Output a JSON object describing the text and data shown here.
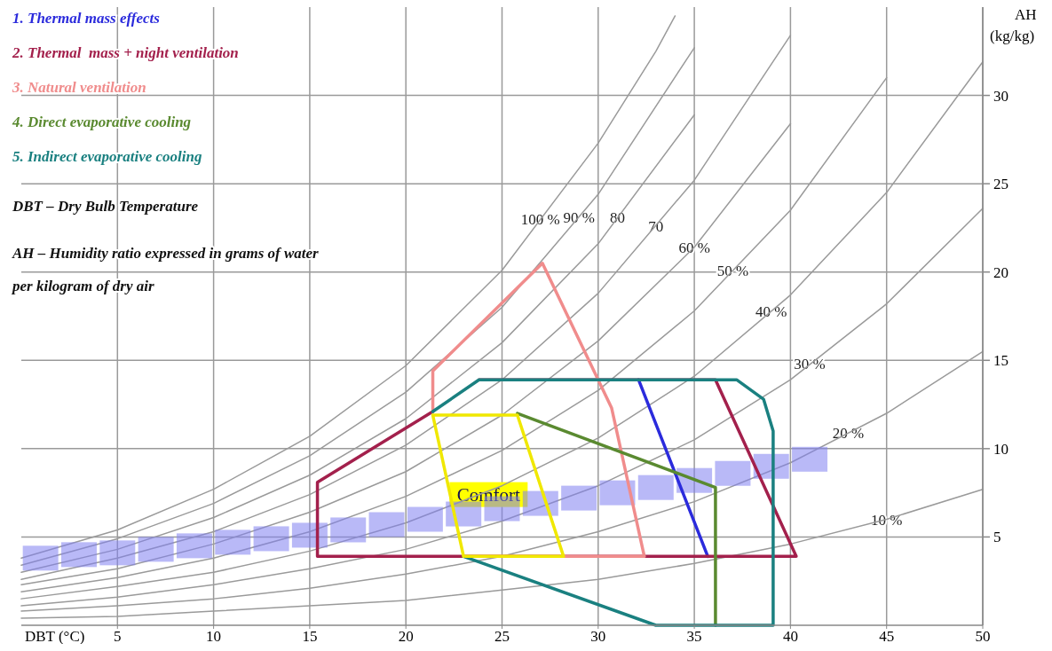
{
  "chart_data": {
    "type": "line",
    "xlabel": "DBT (°C)",
    "ylabel": "AH (kg/kg)",
    "xlim": [
      0,
      50
    ],
    "ylim": [
      0,
      35
    ],
    "xticks": [
      5,
      10,
      15,
      20,
      25,
      30,
      35,
      40,
      45,
      50
    ],
    "yticks": [
      5,
      10,
      15,
      20,
      25,
      30
    ],
    "grid": true,
    "legend": "top left",
    "series": [
      {
        "color": "#9a9a9a",
        "x": [
          0,
          5,
          10,
          15,
          20,
          25,
          30,
          33,
          34
        ],
        "values": [
          3.8,
          5.4,
          7.7,
          10.7,
          14.7,
          20.1,
          27.3,
          32.5,
          34.5
        ]
      },
      {
        "color": "#9a9a9a",
        "x": [
          0,
          5,
          10,
          15,
          20,
          25,
          30,
          35
        ],
        "values": [
          3.4,
          4.9,
          6.9,
          9.6,
          13.2,
          18.0,
          24.4,
          32.7
        ]
      },
      {
        "color": "#9a9a9a",
        "x": [
          0,
          5,
          10,
          15,
          20,
          25,
          30,
          35
        ],
        "values": [
          3.0,
          4.3,
          6.1,
          8.5,
          11.7,
          16.0,
          21.6,
          28.9
        ]
      },
      {
        "color": "#9a9a9a",
        "x": [
          0,
          5,
          10,
          15,
          20,
          25,
          30,
          35,
          40
        ],
        "values": [
          2.6,
          3.8,
          5.3,
          7.4,
          10.2,
          13.9,
          18.8,
          25.2,
          33.4
        ]
      },
      {
        "color": "#9a9a9a",
        "x": [
          0,
          5,
          10,
          15,
          20,
          25,
          30,
          35,
          40
        ],
        "values": [
          2.3,
          3.2,
          4.6,
          6.4,
          8.7,
          11.9,
          16.1,
          21.4,
          28.4
        ]
      },
      {
        "color": "#9a9a9a",
        "x": [
          0,
          5,
          10,
          15,
          20,
          25,
          30,
          35,
          40,
          45
        ],
        "values": [
          1.9,
          2.7,
          3.8,
          5.3,
          7.3,
          9.9,
          13.3,
          17.8,
          23.5,
          31.0
        ]
      },
      {
        "color": "#9a9a9a",
        "x": [
          0,
          5,
          10,
          15,
          20,
          25,
          30,
          35,
          40,
          45,
          50
        ],
        "values": [
          1.5,
          2.2,
          3.0,
          4.2,
          5.8,
          7.9,
          10.6,
          14.1,
          18.7,
          24.5,
          31.9
        ]
      },
      {
        "color": "#9a9a9a",
        "x": [
          0,
          5,
          10,
          15,
          20,
          25,
          30,
          35,
          40,
          45,
          50
        ],
        "values": [
          1.1,
          1.6,
          2.3,
          3.2,
          4.3,
          5.9,
          7.9,
          10.5,
          13.9,
          18.2,
          23.6
        ]
      },
      {
        "color": "#9a9a9a",
        "x": [
          0,
          5,
          10,
          15,
          20,
          25,
          30,
          35,
          40,
          45,
          50
        ],
        "values": [
          0.8,
          1.1,
          1.5,
          2.1,
          2.9,
          3.9,
          5.3,
          7.0,
          9.2,
          12.0,
          15.5
        ]
      },
      {
        "color": "#9a9a9a",
        "x": [
          0,
          5,
          10,
          15,
          20,
          25,
          30,
          35,
          40,
          45,
          50
        ],
        "values": [
          0.4,
          0.5,
          0.8,
          1.1,
          1.4,
          2.0,
          2.6,
          3.5,
          4.6,
          6.0,
          7.7
        ]
      },
      {
        "type": "scatter",
        "marker": "square",
        "color": "#8080f0",
        "x": [
          1,
          3,
          5,
          7,
          9,
          11,
          13,
          15,
          17,
          19,
          21,
          23,
          25,
          27,
          29,
          31,
          33,
          35,
          37,
          39,
          41
        ],
        "values": [
          3.8,
          4.0,
          4.1,
          4.3,
          4.5,
          4.7,
          4.9,
          5.1,
          5.4,
          5.7,
          6.0,
          6.3,
          6.6,
          6.9,
          7.2,
          7.5,
          7.8,
          8.2,
          8.6,
          9.0,
          9.4
        ]
      },
      {
        "name": "1. Thermal mass effects",
        "color": "#2b2bdc",
        "x": [
          32.1,
          35.7
        ],
        "values": [
          13.9,
          3.9
        ]
      },
      {
        "name": "2. Thermal  mass + night ventilation",
        "color": "#a3204c",
        "x": [
          21.4,
          15.4,
          15.4,
          40.3,
          36.1,
          23.8
        ],
        "values": [
          12.1,
          8.1,
          3.9,
          3.9,
          13.9,
          13.9
        ]
      },
      {
        "name": "3. Natural ventilation",
        "color": "#f08c8c",
        "x": [
          21.4,
          21.4,
          27.1,
          30.7,
          32.4,
          23.0
        ],
        "values": [
          12.1,
          14.4,
          20.5,
          12.3,
          3.9,
          3.9
        ]
      },
      {
        "name": "4. Direct evaporative cooling",
        "color": "#5a8a30",
        "x": [
          25.8,
          36.1,
          36.1
        ],
        "values": [
          12.0,
          7.8,
          0
        ]
      },
      {
        "name": "5. Indirect evaporative cooling",
        "color": "#1a8080",
        "x": [
          21.4,
          23.8,
          37.2,
          38.6,
          39.1,
          39.1,
          33.0,
          23.0
        ],
        "values": [
          12.1,
          13.9,
          13.9,
          12.8,
          11.0,
          0,
          0,
          3.9
        ]
      },
      {
        "color": "#f0e800",
        "x": [
          23.0,
          21.4,
          25.8,
          28.2,
          23.1
        ],
        "values": [
          3.9,
          11.9,
          11.9,
          3.9,
          3.9
        ]
      }
    ],
    "annotations": [
      "DBT – Dry Bulb Temperature",
      "AH – Humidity ratio expressed in grams of water per kilogram of dry air",
      {
        "text": "Comfort",
        "x": 24.3,
        "y": 7.4
      },
      {
        "text": "100 %",
        "x": 27,
        "y": 23.0
      },
      {
        "text": "90 %",
        "x": 29,
        "y": 23.1
      },
      {
        "text": "80",
        "x": 31,
        "y": 23.1
      },
      {
        "text": "70",
        "x": 33,
        "y": 22.6
      },
      {
        "text": "60 %",
        "x": 35,
        "y": 21.4
      },
      {
        "text": "50 %",
        "x": 37,
        "y": 20.1
      },
      {
        "text": "40 %",
        "x": 39,
        "y": 17.8
      },
      {
        "text": "30 %",
        "x": 41,
        "y": 14.8
      },
      {
        "text": "20 %",
        "x": 43,
        "y": 10.9
      },
      {
        "text": "10 %",
        "x": 45,
        "y": 6.0
      }
    ]
  }
}
